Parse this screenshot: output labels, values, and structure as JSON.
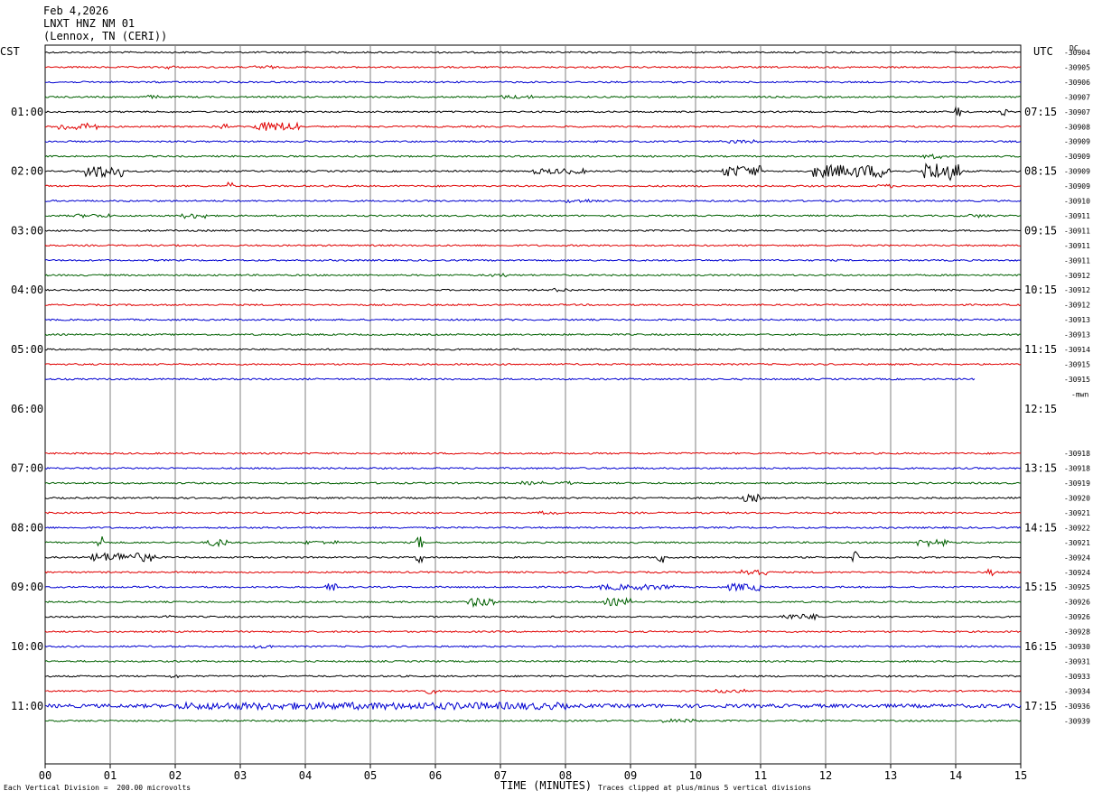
{
  "header": {
    "date": "Feb 4,2026",
    "station": "LNXT HNZ NM 01",
    "location": "(Lennox, TN (CERI))"
  },
  "left_axis_label": "CST",
  "right_axis_label": "UTC",
  "dc_label": "DC",
  "mwn_label": "-mwn",
  "footer": {
    "scale_note": "Each Vertical Division =  200.00 microvolts",
    "xlabel": "TIME (MINUTES)",
    "clip_note": "Traces clipped at plus/minus 5 vertical divisions"
  },
  "chart_data": {
    "type": "line",
    "title": "LNXT HNZ NM 01",
    "xlabel": "TIME (MINUTES)",
    "xlim": [
      0,
      15
    ],
    "grid": true,
    "x_ticks": [
      "00",
      "01",
      "02",
      "03",
      "04",
      "05",
      "06",
      "07",
      "08",
      "09",
      "10",
      "11",
      "12",
      "13",
      "14",
      "15"
    ],
    "cst_labels": [
      {
        "row": 4,
        "text": "01:00"
      },
      {
        "row": 8,
        "text": "02:00"
      },
      {
        "row": 12,
        "text": "03:00"
      },
      {
        "row": 16,
        "text": "04:00"
      },
      {
        "row": 20,
        "text": "05:00"
      },
      {
        "row": 24,
        "text": "06:00"
      },
      {
        "row": 28,
        "text": "07:00"
      },
      {
        "row": 32,
        "text": "08:00"
      },
      {
        "row": 36,
        "text": "09:00"
      },
      {
        "row": 40,
        "text": "10:00"
      },
      {
        "row": 44,
        "text": "11:00"
      }
    ],
    "utc_labels": [
      {
        "row": 4,
        "text": "07:15"
      },
      {
        "row": 8,
        "text": "08:15"
      },
      {
        "row": 12,
        "text": "09:15"
      },
      {
        "row": 16,
        "text": "10:15"
      },
      {
        "row": 20,
        "text": "11:15"
      },
      {
        "row": 24,
        "text": "12:15"
      },
      {
        "row": 28,
        "text": "13:15"
      },
      {
        "row": 32,
        "text": "14:15"
      },
      {
        "row": 36,
        "text": "15:15"
      },
      {
        "row": 40,
        "text": "16:15"
      },
      {
        "row": 44,
        "text": "17:15"
      }
    ],
    "colors": [
      "#000000",
      "#e00000",
      "#0000d0",
      "#006000"
    ],
    "traces": [
      {
        "row": 0,
        "color": 0,
        "dc": "-30904",
        "activity": []
      },
      {
        "row": 1,
        "color": 1,
        "dc": "-30905",
        "activity": [
          [
            1.8,
            0.2,
            2
          ],
          [
            3.2,
            0.3,
            2
          ]
        ]
      },
      {
        "row": 2,
        "color": 2,
        "dc": "-30906",
        "activity": []
      },
      {
        "row": 3,
        "color": 3,
        "dc": "-30907",
        "activity": [
          [
            1.5,
            0.3,
            2
          ],
          [
            7.0,
            0.5,
            2
          ]
        ]
      },
      {
        "row": 4,
        "color": 0,
        "dc": "-30907",
        "activity": [
          [
            14.0,
            0.1,
            6
          ],
          [
            14.7,
            0.1,
            4
          ]
        ]
      },
      {
        "row": 5,
        "color": 1,
        "dc": "-30908",
        "activity": [
          [
            0.2,
            0.6,
            4
          ],
          [
            2.7,
            0.1,
            4
          ],
          [
            3.2,
            0.7,
            5
          ]
        ]
      },
      {
        "row": 6,
        "color": 2,
        "dc": "-30909",
        "activity": [
          [
            10.5,
            0.5,
            2
          ]
        ]
      },
      {
        "row": 7,
        "color": 3,
        "dc": "-30909",
        "activity": [
          [
            13.5,
            0.3,
            3
          ]
        ]
      },
      {
        "row": 8,
        "color": 0,
        "dc": "-30909",
        "activity": [
          [
            0.6,
            0.6,
            7
          ],
          [
            7.5,
            0.8,
            3
          ],
          [
            10.4,
            0.6,
            6
          ],
          [
            11.8,
            1.2,
            7
          ],
          [
            13.5,
            0.6,
            10
          ]
        ]
      },
      {
        "row": 9,
        "color": 1,
        "dc": "-30909",
        "activity": [
          [
            2.8,
            0.1,
            4
          ],
          [
            12.8,
            0.3,
            2
          ]
        ]
      },
      {
        "row": 10,
        "color": 2,
        "dc": "-30910",
        "activity": [
          [
            8.0,
            0.5,
            2
          ]
        ]
      },
      {
        "row": 11,
        "color": 3,
        "dc": "-30911",
        "activity": [
          [
            0.4,
            0.6,
            2
          ],
          [
            2.1,
            0.4,
            3
          ],
          [
            14.2,
            0.3,
            2
          ]
        ]
      },
      {
        "row": 12,
        "color": 0,
        "dc": "-30911",
        "activity": []
      },
      {
        "row": 13,
        "color": 1,
        "dc": "-30911",
        "activity": []
      },
      {
        "row": 14,
        "color": 2,
        "dc": "-30911",
        "activity": []
      },
      {
        "row": 15,
        "color": 3,
        "dc": "-30912",
        "activity": [
          [
            6.8,
            0.3,
            2
          ]
        ]
      },
      {
        "row": 16,
        "color": 0,
        "dc": "-30912",
        "activity": [
          [
            7.8,
            0.3,
            2
          ]
        ]
      },
      {
        "row": 17,
        "color": 1,
        "dc": "-30912",
        "activity": []
      },
      {
        "row": 18,
        "color": 2,
        "dc": "-30913",
        "activity": []
      },
      {
        "row": 19,
        "color": 3,
        "dc": "-30913",
        "activity": []
      },
      {
        "row": 20,
        "color": 0,
        "dc": "-30914",
        "activity": []
      },
      {
        "row": 21,
        "color": 1,
        "dc": "-30915",
        "activity": []
      },
      {
        "row": 22,
        "color": 2,
        "dc": "-30915",
        "activity": [],
        "end_minute": 14.3
      },
      {
        "row": 27,
        "color": 1,
        "dc": "-30918",
        "activity": []
      },
      {
        "row": 28,
        "color": 2,
        "dc": "-30918",
        "activity": []
      },
      {
        "row": 29,
        "color": 3,
        "dc": "-30919",
        "activity": [
          [
            7.3,
            0.4,
            2
          ],
          [
            7.9,
            0.2,
            2
          ]
        ]
      },
      {
        "row": 30,
        "color": 0,
        "dc": "-30920",
        "activity": [
          [
            10.7,
            0.3,
            4
          ]
        ]
      },
      {
        "row": 31,
        "color": 1,
        "dc": "-30921",
        "activity": [
          [
            7.6,
            0.3,
            2
          ]
        ]
      },
      {
        "row": 32,
        "color": 2,
        "dc": "-30922",
        "activity": []
      },
      {
        "row": 33,
        "color": 3,
        "dc": "-30921",
        "activity": [
          [
            0.8,
            0.1,
            10
          ],
          [
            2.5,
            0.3,
            4
          ],
          [
            4.0,
            0.5,
            2
          ],
          [
            5.7,
            0.1,
            8
          ],
          [
            13.4,
            0.5,
            4
          ]
        ]
      },
      {
        "row": 34,
        "color": 0,
        "dc": "-30924",
        "activity": [
          [
            0.7,
            1.0,
            5
          ],
          [
            5.7,
            0.1,
            7
          ],
          [
            9.4,
            0.1,
            6
          ],
          [
            12.4,
            0.1,
            7
          ]
        ]
      },
      {
        "row": 35,
        "color": 1,
        "dc": "-30924",
        "activity": [
          [
            10.7,
            0.4,
            4
          ],
          [
            14.5,
            0.1,
            4
          ]
        ]
      },
      {
        "row": 36,
        "color": 2,
        "dc": "-30925",
        "activity": [
          [
            4.3,
            0.3,
            4
          ],
          [
            8.5,
            1.2,
            3
          ],
          [
            10.5,
            0.5,
            4
          ]
        ]
      },
      {
        "row": 37,
        "color": 3,
        "dc": "-30926",
        "activity": [
          [
            6.5,
            0.4,
            5
          ],
          [
            8.6,
            0.4,
            4
          ]
        ]
      },
      {
        "row": 38,
        "color": 0,
        "dc": "-30926",
        "activity": [
          [
            1.8,
            0.2,
            2
          ],
          [
            11.3,
            0.6,
            3
          ]
        ]
      },
      {
        "row": 39,
        "color": 1,
        "dc": "-30928",
        "activity": []
      },
      {
        "row": 40,
        "color": 2,
        "dc": "-30930",
        "activity": [
          [
            3.2,
            0.3,
            2
          ]
        ]
      },
      {
        "row": 41,
        "color": 3,
        "dc": "-30931",
        "activity": []
      },
      {
        "row": 42,
        "color": 0,
        "dc": "-30933",
        "activity": [
          [
            1.9,
            0.2,
            2
          ]
        ]
      },
      {
        "row": 43,
        "color": 1,
        "dc": "-30934",
        "activity": [
          [
            5.7,
            0.3,
            3
          ],
          [
            10.3,
            0.5,
            2
          ]
        ]
      },
      {
        "row": 44,
        "color": 2,
        "dc": "-30936",
        "activity": [
          [
            2.0,
            6.0,
            4
          ],
          [
            0.0,
            15.0,
            2
          ]
        ]
      },
      {
        "row": 45,
        "color": 3,
        "dc": "-30939",
        "activity": [
          [
            9.5,
            0.5,
            2
          ]
        ]
      }
    ]
  }
}
